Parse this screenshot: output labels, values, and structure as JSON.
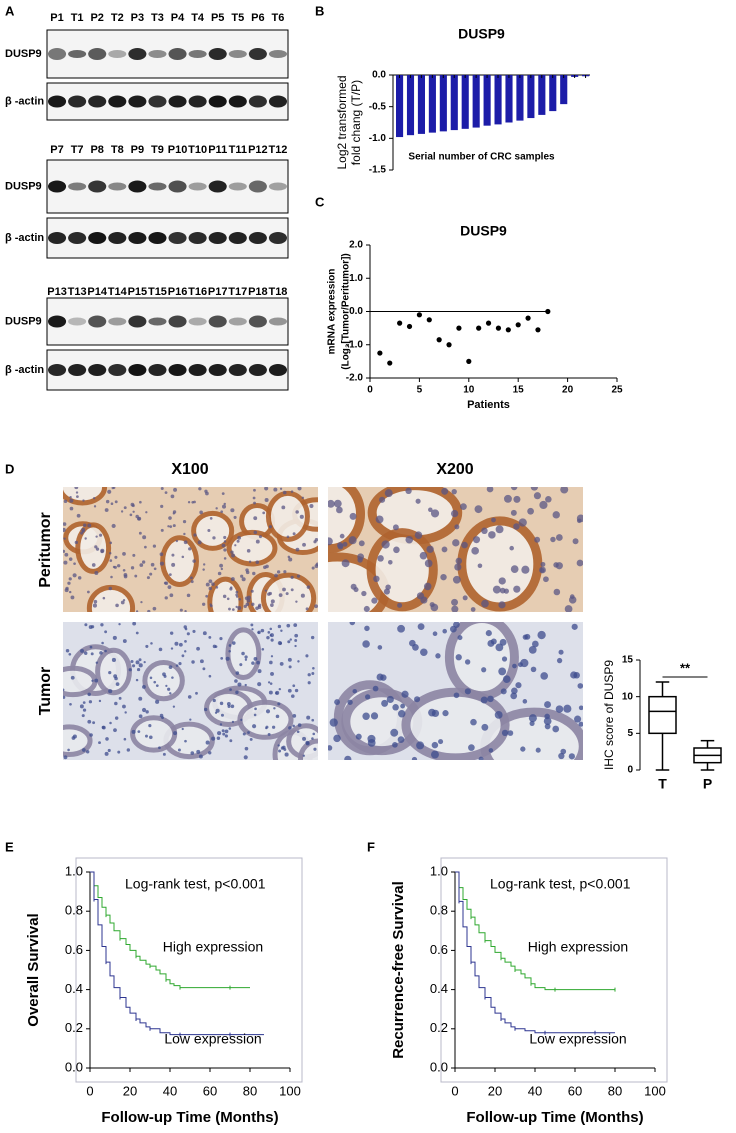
{
  "panel_labels": [
    "A",
    "B",
    "C",
    "D",
    "E",
    "F"
  ],
  "blots": [
    {
      "lanes": [
        "P1",
        "T1",
        "P2",
        "T2",
        "P3",
        "T3",
        "P4",
        "T4",
        "P5",
        "T5",
        "P6",
        "T6"
      ],
      "rows": [
        "DUSP9",
        "β -actin"
      ]
    },
    {
      "lanes": [
        "P7",
        "T7",
        "P8",
        "T8",
        "P9",
        "T9",
        "P10",
        "T10",
        "P11",
        "T11",
        "P12",
        "T12"
      ],
      "rows": [
        "DUSP9",
        "β -actin"
      ]
    },
    {
      "lanes": [
        "P13",
        "T13",
        "P14",
        "T14",
        "P15",
        "T15",
        "P16",
        "T16",
        "P17",
        "T17",
        "P18",
        "T18"
      ],
      "rows": [
        "DUSP9",
        "β -actin"
      ]
    }
  ],
  "ihc": {
    "magnifications": [
      "X100",
      "X200"
    ],
    "rows": [
      "Peritumor",
      "Tumor"
    ]
  },
  "chart_data": [
    {
      "type": "bar",
      "title": "DUSP9",
      "ylabel": [
        "Log2 transformed",
        "fold chang (T/P)"
      ],
      "annotation": "Serial number of CRC samples",
      "categories": [
        null,
        null,
        null,
        null,
        null,
        null,
        null,
        null,
        null,
        null,
        null,
        null,
        null,
        null,
        null,
        null,
        null,
        null
      ],
      "values": [
        -0.98,
        -0.95,
        -0.93,
        -0.91,
        -0.89,
        -0.87,
        -0.85,
        -0.83,
        -0.8,
        -0.78,
        -0.75,
        -0.72,
        -0.68,
        -0.63,
        -0.57,
        -0.46,
        -0.03,
        -0.02
      ],
      "color": "#1c1ca8",
      "ylim": [
        -1.5,
        0
      ],
      "yticks": [
        -1.5,
        {
          "value": -1.0,
          "label": "-1.0"
        },
        -0.5,
        {
          "value": 0,
          "label": "0.0"
        }
      ]
    },
    {
      "type": "scatter",
      "title": "DUSP9",
      "ylabel": [
        "mRNA expression",
        "(Log₂[Tumor/Peritumor])"
      ],
      "xlabel": "Patients",
      "x": [
        1,
        2,
        3,
        4,
        5,
        6,
        7,
        8,
        9,
        10,
        11,
        12,
        13,
        14,
        15,
        16,
        17,
        18
      ],
      "values": [
        -1.25,
        -1.55,
        -0.35,
        -0.45,
        -0.1,
        -0.25,
        -0.85,
        -1.0,
        -0.5,
        -1.5,
        -0.5,
        -0.35,
        -0.5,
        -0.55,
        -0.4,
        -0.2,
        -0.55,
        0.0
      ],
      "color": "#000000",
      "xlim": [
        0,
        25
      ],
      "xticks": [
        0,
        5,
        10,
        15,
        20,
        25
      ],
      "ylim": [
        -2,
        2
      ],
      "yticks": [
        {
          "value": -2,
          "label": "-2.0"
        },
        {
          "value": -1,
          "label": "-1.0"
        },
        {
          "value": 0,
          "label": "0.0"
        },
        {
          "value": 1,
          "label": "1.0"
        },
        {
          "value": 2,
          "label": "2.0"
        }
      ]
    },
    {
      "type": "box",
      "ylabel": "IHC score of DUSP9",
      "annotation": "**",
      "categories": [
        "T",
        "P"
      ],
      "boxes": [
        {
          "min": 0,
          "q1": 5,
          "median": 8,
          "q3": 10,
          "max": 12
        },
        {
          "min": 0,
          "q1": 1,
          "median": 2,
          "q3": 3,
          "max": 4
        }
      ],
      "ylim": [
        0,
        15
      ],
      "yticks": [
        0,
        5,
        10,
        15
      ]
    },
    {
      "type": "line",
      "drawstyle": "steps-post",
      "ylabel": "Overall Survival",
      "xlabel": "Follow-up Time (Months)",
      "annotation": "Log-rank test,  p<0.001",
      "series": [
        {
          "name": "High expression",
          "color": "#2fa82f",
          "x": [
            0,
            2,
            4,
            6,
            8,
            10,
            12,
            15,
            18,
            20,
            23,
            25,
            28,
            30,
            33,
            35,
            38,
            40,
            42,
            45,
            50,
            60,
            70,
            80
          ],
          "values": [
            1.0,
            0.93,
            0.87,
            0.82,
            0.78,
            0.74,
            0.7,
            0.66,
            0.63,
            0.6,
            0.57,
            0.55,
            0.53,
            0.52,
            0.5,
            0.48,
            0.45,
            0.43,
            0.42,
            0.41,
            0.41,
            0.41,
            0.41,
            0.41
          ]
        },
        {
          "name": "Low expression",
          "color": "#2d3590",
          "x": [
            0,
            2,
            4,
            6,
            8,
            10,
            12,
            15,
            18,
            20,
            23,
            25,
            28,
            30,
            35,
            40,
            45,
            50,
            60,
            70,
            80,
            87
          ],
          "values": [
            1.0,
            0.86,
            0.73,
            0.62,
            0.54,
            0.47,
            0.41,
            0.36,
            0.31,
            0.28,
            0.25,
            0.23,
            0.21,
            0.2,
            0.18,
            0.17,
            0.17,
            0.17,
            0.17,
            0.17,
            0.17,
            0.17
          ]
        }
      ],
      "xlim": [
        0,
        100
      ],
      "xticks": [
        0,
        20,
        40,
        60,
        80,
        100
      ],
      "ylim": [
        0,
        1
      ],
      "yticks": [
        {
          "value": 0,
          "label": "0.0"
        },
        0.2,
        0.4,
        0.6,
        0.8,
        {
          "value": 1,
          "label": "1.0"
        }
      ]
    },
    {
      "type": "line",
      "drawstyle": "steps-post",
      "ylabel": "Recurrence-free Survival",
      "xlabel": "Follow-up Time (Months)",
      "annotation": "Log-rank test,  p<0.001",
      "series": [
        {
          "name": "High expression",
          "color": "#2fa82f",
          "x": [
            0,
            2,
            4,
            6,
            8,
            10,
            12,
            15,
            18,
            20,
            23,
            25,
            28,
            30,
            33,
            35,
            38,
            40,
            45,
            50,
            60,
            70,
            80
          ],
          "values": [
            1.0,
            0.92,
            0.86,
            0.81,
            0.77,
            0.73,
            0.69,
            0.65,
            0.62,
            0.59,
            0.56,
            0.54,
            0.52,
            0.5,
            0.48,
            0.46,
            0.43,
            0.41,
            0.4,
            0.4,
            0.4,
            0.4,
            0.4
          ]
        },
        {
          "name": "Low expression",
          "color": "#2d3590",
          "x": [
            0,
            2,
            4,
            6,
            8,
            10,
            12,
            15,
            18,
            20,
            23,
            25,
            28,
            30,
            35,
            40,
            45,
            50,
            60,
            70,
            80
          ],
          "values": [
            1.0,
            0.85,
            0.72,
            0.62,
            0.54,
            0.47,
            0.41,
            0.36,
            0.31,
            0.28,
            0.25,
            0.23,
            0.21,
            0.2,
            0.19,
            0.18,
            0.18,
            0.18,
            0.18,
            0.18,
            0.18
          ]
        }
      ],
      "xlim": [
        0,
        100
      ],
      "xticks": [
        0,
        20,
        40,
        60,
        80,
        100
      ],
      "ylim": [
        0,
        1
      ],
      "yticks": [
        {
          "value": 0,
          "label": "0.0"
        },
        0.2,
        0.4,
        0.6,
        0.8,
        {
          "value": 1,
          "label": "1.0"
        }
      ]
    }
  ]
}
